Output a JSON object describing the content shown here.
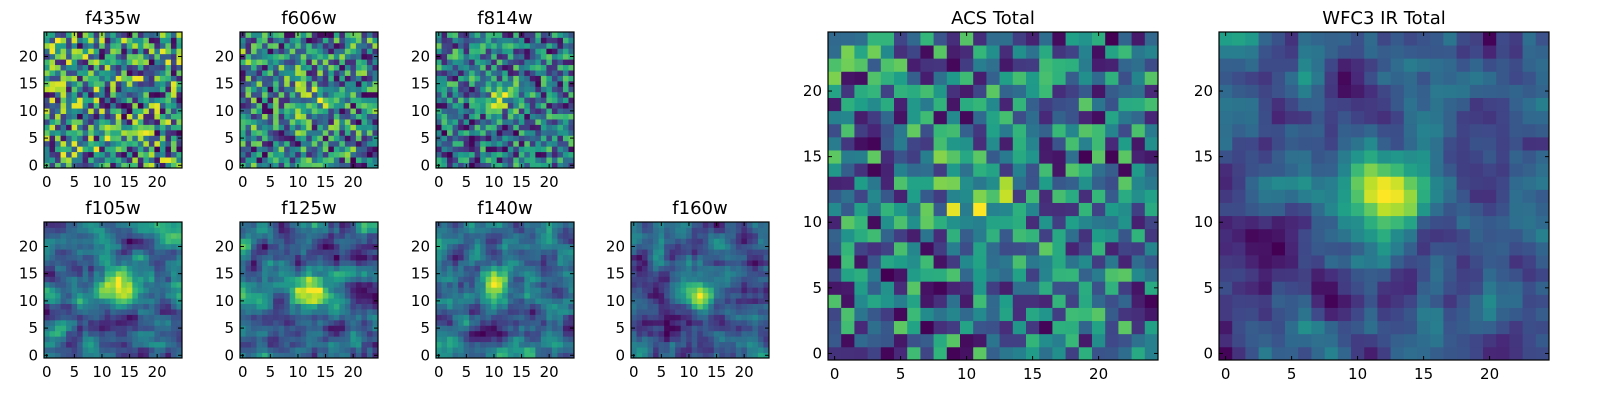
{
  "figure": {
    "colormap": "viridis",
    "colors": {
      "low": "#440154",
      "mid": "#21918c",
      "high": "#fde725",
      "axes": "#000000"
    }
  },
  "chart_data": [
    {
      "type": "heatmap",
      "title": "f435w",
      "shape": [
        25,
        25
      ],
      "xlim": [
        0,
        24
      ],
      "ylim": [
        0,
        24
      ],
      "xticks": [
        0,
        5,
        10,
        15,
        20
      ],
      "yticks": [
        0,
        5,
        10,
        15,
        20
      ],
      "origin": "lower",
      "pattern": "noise, no visible central source",
      "center": [
        12,
        12
      ]
    },
    {
      "type": "heatmap",
      "title": "f606w",
      "shape": [
        25,
        25
      ],
      "xlim": [
        0,
        24
      ],
      "ylim": [
        0,
        24
      ],
      "xticks": [
        0,
        5,
        10,
        15,
        20
      ],
      "yticks": [
        0,
        5,
        10,
        15,
        20
      ],
      "origin": "lower",
      "pattern": "noise with faint central source",
      "center": [
        12,
        12
      ]
    },
    {
      "type": "heatmap",
      "title": "f814w",
      "shape": [
        25,
        25
      ],
      "xlim": [
        0,
        24
      ],
      "ylim": [
        0,
        24
      ],
      "xticks": [
        0,
        5,
        10,
        15,
        20
      ],
      "yticks": [
        0,
        5,
        10,
        15,
        20
      ],
      "origin": "lower",
      "pattern": "noise with central source",
      "center": [
        11,
        13
      ]
    },
    {
      "type": "heatmap",
      "title": "f105w",
      "shape": [
        25,
        25
      ],
      "xlim": [
        0,
        24
      ],
      "ylim": [
        0,
        24
      ],
      "xticks": [
        0,
        5,
        10,
        15,
        20
      ],
      "yticks": [
        0,
        5,
        10,
        15,
        20
      ],
      "origin": "lower",
      "pattern": "smooth background with central source",
      "center": [
        12,
        12
      ]
    },
    {
      "type": "heatmap",
      "title": "f125w",
      "shape": [
        25,
        25
      ],
      "xlim": [
        0,
        24
      ],
      "ylim": [
        0,
        24
      ],
      "xticks": [
        0,
        5,
        10,
        15,
        20
      ],
      "yticks": [
        0,
        5,
        10,
        15,
        20
      ],
      "origin": "lower",
      "pattern": "smooth background with central source",
      "center": [
        12,
        12
      ]
    },
    {
      "type": "heatmap",
      "title": "f140w",
      "shape": [
        25,
        25
      ],
      "xlim": [
        0,
        24
      ],
      "ylim": [
        0,
        24
      ],
      "xticks": [
        0,
        5,
        10,
        15,
        20
      ],
      "yticks": [
        0,
        5,
        10,
        15,
        20
      ],
      "origin": "lower",
      "pattern": "smooth background with central source",
      "center": [
        11,
        13
      ]
    },
    {
      "type": "heatmap",
      "title": "f160w",
      "shape": [
        25,
        25
      ],
      "xlim": [
        0,
        24
      ],
      "ylim": [
        0,
        24
      ],
      "xticks": [
        0,
        5,
        10,
        15,
        20
      ],
      "yticks": [
        0,
        5,
        10,
        15,
        20
      ],
      "origin": "lower",
      "pattern": "smooth background with central source",
      "center": [
        12,
        12
      ]
    },
    {
      "type": "heatmap",
      "title": "ACS Total",
      "shape": [
        25,
        25
      ],
      "xlim": [
        0,
        24
      ],
      "ylim": [
        0,
        24
      ],
      "xticks": [
        0,
        5,
        10,
        15,
        20
      ],
      "yticks": [
        0,
        5,
        10,
        15,
        20
      ],
      "origin": "lower",
      "pattern": "noise with central source",
      "center": [
        11,
        12
      ]
    },
    {
      "type": "heatmap",
      "title": "WFC3 IR Total",
      "shape": [
        25,
        25
      ],
      "xlim": [
        0,
        24
      ],
      "ylim": [
        0,
        24
      ],
      "xticks": [
        0,
        5,
        10,
        15,
        20
      ],
      "yticks": [
        0,
        5,
        10,
        15,
        20
      ],
      "origin": "lower",
      "pattern": "smooth background with bright central source",
      "center": [
        12,
        12
      ]
    }
  ]
}
